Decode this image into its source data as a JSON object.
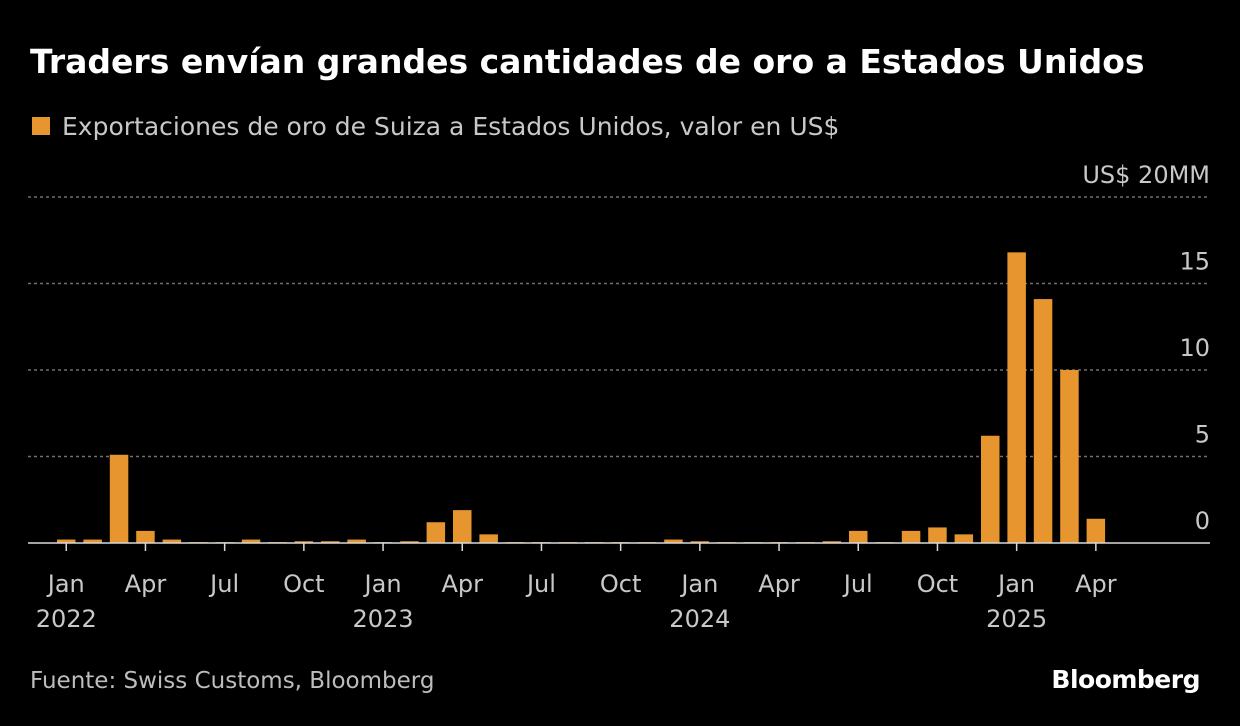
{
  "title": "Traders envían grandes cantidades de oro a Estados Unidos",
  "legend_label": "Exportaciones de oro de Suiza a Estados Unidos, valor en US$",
  "source": "Fuente: Swiss Customs, Bloomberg",
  "brand": "Bloomberg",
  "colors": {
    "background": "#000000",
    "bar": "#e6952f",
    "grid": "#6f6f6f",
    "axis": "#d9d9d9",
    "tick_text": "#c8c8c8"
  },
  "chart_data": {
    "type": "bar",
    "title": "Traders envían grandes cantidades de oro a Estados Unidos",
    "xlabel": "",
    "ylabel": "",
    "ylim": [
      0,
      20
    ],
    "grid": true,
    "legend": "top-left",
    "categories": [
      "2022-01",
      "2022-02",
      "2022-03",
      "2022-04",
      "2022-05",
      "2022-06",
      "2022-07",
      "2022-08",
      "2022-09",
      "2022-10",
      "2022-11",
      "2022-12",
      "2023-01",
      "2023-02",
      "2023-03",
      "2023-04",
      "2023-05",
      "2023-06",
      "2023-07",
      "2023-08",
      "2023-09",
      "2023-10",
      "2023-11",
      "2023-12",
      "2024-01",
      "2024-02",
      "2024-03",
      "2024-04",
      "2024-05",
      "2024-06",
      "2024-07",
      "2024-08",
      "2024-09",
      "2024-10",
      "2024-11",
      "2024-12",
      "2025-01",
      "2025-02",
      "2025-03",
      "2025-04"
    ],
    "series": [
      {
        "name": "Exportaciones de oro de Suiza a Estados Unidos, valor en US$",
        "values": [
          0.2,
          0.2,
          5.1,
          0.7,
          0.2,
          0.05,
          0.05,
          0.2,
          0.05,
          0.1,
          0.1,
          0.2,
          0.05,
          0.1,
          1.2,
          1.9,
          0.5,
          0.05,
          0.05,
          0.05,
          0.05,
          0.05,
          0.05,
          0.2,
          0.1,
          0.05,
          0.05,
          0.05,
          0.05,
          0.1,
          0.7,
          0.05,
          0.7,
          0.9,
          0.5,
          6.2,
          16.8,
          14.1,
          10.0,
          1.4
        ]
      }
    ],
    "y_ticks": [
      {
        "value": 0,
        "label": "0"
      },
      {
        "value": 5,
        "label": "5"
      },
      {
        "value": 10,
        "label": "10"
      },
      {
        "value": 15,
        "label": "15"
      },
      {
        "value": 20,
        "label": "US$ 20MM"
      }
    ],
    "x_ticks": [
      {
        "index": 0,
        "month": "Jan",
        "year": "2022"
      },
      {
        "index": 3,
        "month": "Apr",
        "year": ""
      },
      {
        "index": 6,
        "month": "Jul",
        "year": ""
      },
      {
        "index": 9,
        "month": "Oct",
        "year": ""
      },
      {
        "index": 12,
        "month": "Jan",
        "year": "2023"
      },
      {
        "index": 15,
        "month": "Apr",
        "year": ""
      },
      {
        "index": 18,
        "month": "Jul",
        "year": ""
      },
      {
        "index": 21,
        "month": "Oct",
        "year": ""
      },
      {
        "index": 24,
        "month": "Jan",
        "year": "2024"
      },
      {
        "index": 27,
        "month": "Apr",
        "year": ""
      },
      {
        "index": 30,
        "month": "Jul",
        "year": ""
      },
      {
        "index": 33,
        "month": "Oct",
        "year": ""
      },
      {
        "index": 36,
        "month": "Jan",
        "year": "2025"
      },
      {
        "index": 39,
        "month": "Apr",
        "year": ""
      }
    ]
  }
}
